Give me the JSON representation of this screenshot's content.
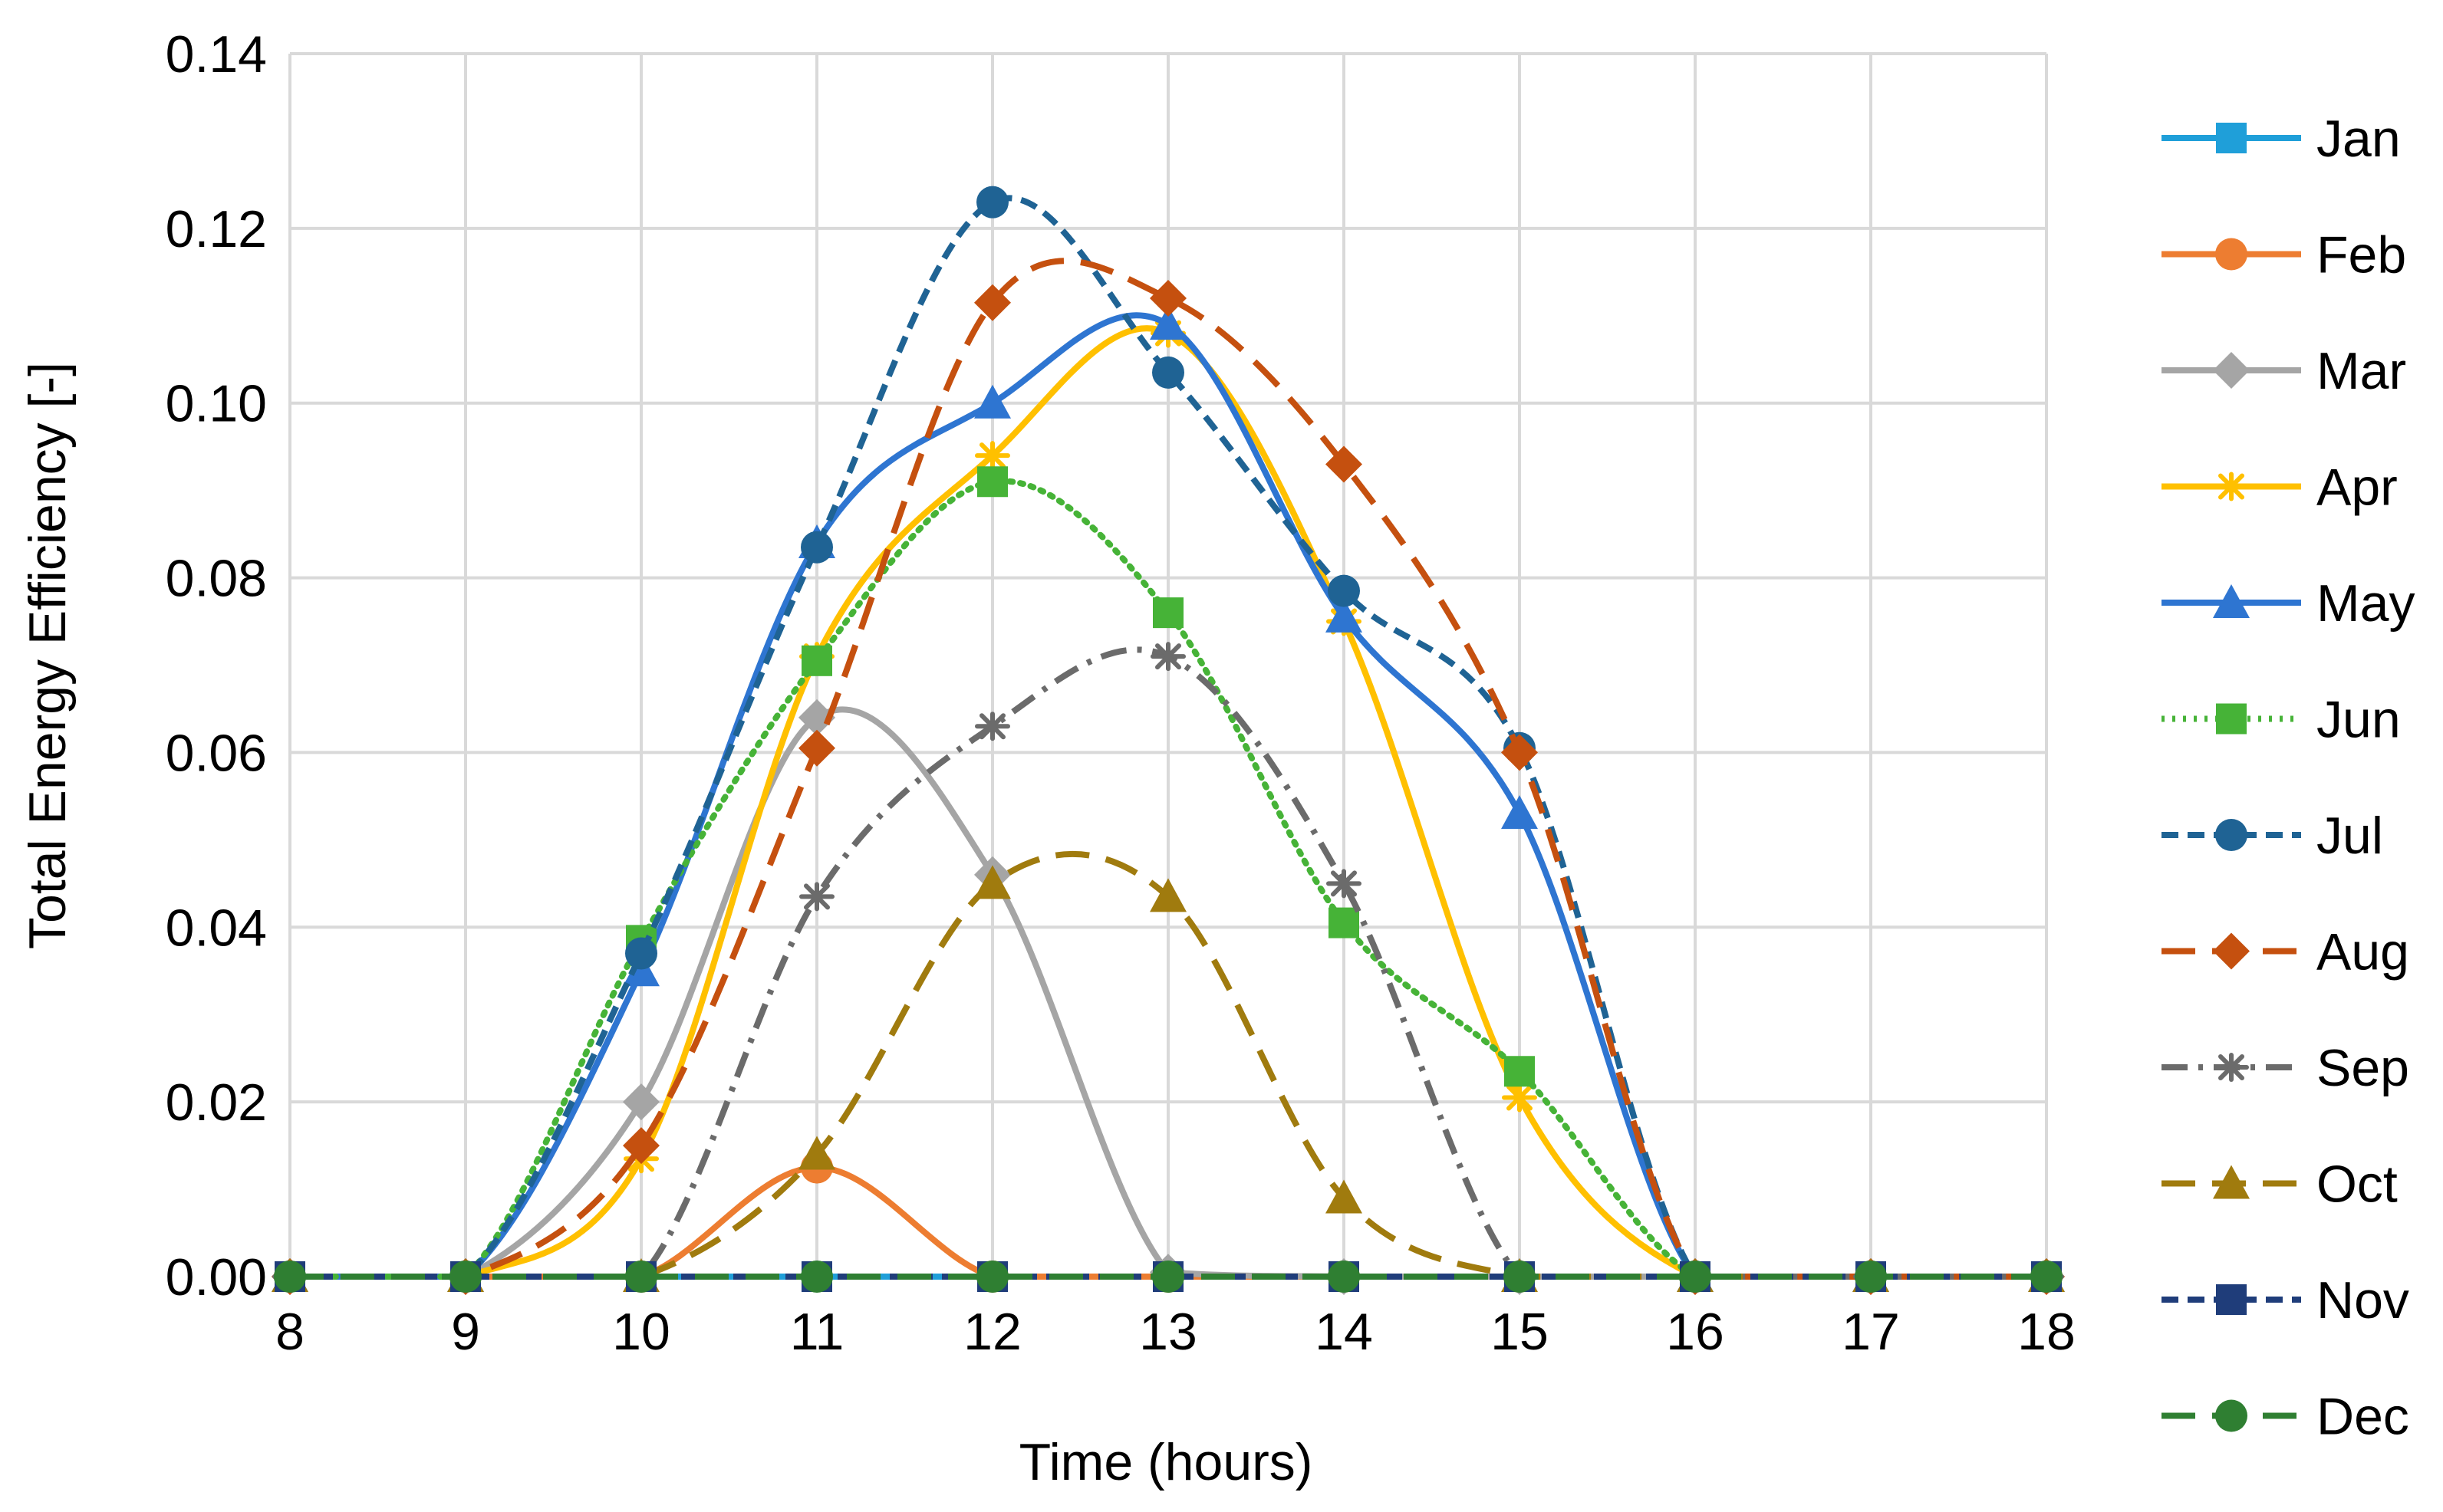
{
  "chart_data": {
    "type": "line",
    "title": "",
    "xlabel": "Time (hours)",
    "ylabel": "Total Energy Efficiency [-]",
    "xlim": [
      8,
      18
    ],
    "ylim": [
      0,
      0.14
    ],
    "x": [
      8,
      9,
      10,
      11,
      12,
      13,
      14,
      15,
      16,
      17,
      18
    ],
    "x_tick_labels": [
      "8",
      "9",
      "10",
      "11",
      "12",
      "13",
      "14",
      "15",
      "16",
      "17",
      "18"
    ],
    "y_tick_labels": [
      "0.00",
      "0.02",
      "0.04",
      "0.06",
      "0.08",
      "0.10",
      "0.12",
      "0.14"
    ],
    "grid": true,
    "legend_position": "right",
    "series": [
      {
        "name": "Jan",
        "color": "#1f9fd9",
        "dash": "solid",
        "marker": "square",
        "values": [
          0,
          0,
          0,
          0,
          0,
          0,
          0,
          0,
          0,
          0,
          0
        ]
      },
      {
        "name": "Feb",
        "color": "#ed7d31",
        "dash": "solid",
        "marker": "circle",
        "values": [
          0,
          0,
          0,
          0.0125,
          0,
          0,
          0,
          0,
          0,
          0,
          0
        ]
      },
      {
        "name": "Mar",
        "color": "#a5a5a5",
        "dash": "solid",
        "marker": "diamond",
        "values": [
          0,
          0,
          0.02,
          0.064,
          0.046,
          0.0005,
          0,
          0,
          0,
          0,
          0
        ]
      },
      {
        "name": "Apr",
        "color": "#ffc000",
        "dash": "solid",
        "marker": "star",
        "values": [
          0,
          0,
          0.0135,
          0.071,
          0.094,
          0.108,
          0.075,
          0.0205,
          0,
          0,
          0
        ]
      },
      {
        "name": "May",
        "color": "#2e75d1",
        "dash": "solid",
        "marker": "triangle",
        "values": [
          0,
          0,
          0.035,
          0.084,
          0.1,
          0.109,
          0.0755,
          0.053,
          0,
          0,
          0
        ]
      },
      {
        "name": "Jun",
        "color": "#46b337",
        "dash": "dot",
        "marker": "square",
        "values": [
          0,
          0,
          0.0385,
          0.0705,
          0.091,
          0.076,
          0.0405,
          0.0235,
          0,
          0,
          0
        ]
      },
      {
        "name": "Jul",
        "color": "#1f6394",
        "dash": "dash",
        "marker": "circle",
        "values": [
          0,
          0,
          0.037,
          0.0835,
          0.123,
          0.1035,
          0.0785,
          0.0605,
          0,
          0,
          0
        ]
      },
      {
        "name": "Aug",
        "color": "#c5500f",
        "dash": "longdash",
        "marker": "diamond",
        "values": [
          0,
          0,
          0.015,
          0.0605,
          0.1115,
          0.112,
          0.093,
          0.06,
          0,
          0,
          0
        ]
      },
      {
        "name": "Sep",
        "color": "#6b6b6b",
        "dash": "dashdot",
        "marker": "star",
        "values": [
          0,
          0,
          0,
          0.0435,
          0.063,
          0.071,
          0.045,
          0,
          0,
          0,
          0
        ]
      },
      {
        "name": "Oct",
        "color": "#a07b0e",
        "dash": "longdash",
        "marker": "triangle",
        "values": [
          0,
          0,
          0,
          0.014,
          0.045,
          0.0435,
          0.009,
          0,
          0,
          0,
          0
        ]
      },
      {
        "name": "Nov",
        "color": "#1f3d7a",
        "dash": "dash",
        "marker": "square",
        "values": [
          0,
          0,
          0,
          0,
          0,
          0,
          0,
          0,
          0,
          0,
          0
        ]
      },
      {
        "name": "Dec",
        "color": "#2f7f32",
        "dash": "longdash",
        "marker": "circle",
        "values": [
          0,
          0,
          0,
          0,
          0,
          0,
          0,
          0,
          0,
          0,
          0
        ]
      }
    ]
  }
}
